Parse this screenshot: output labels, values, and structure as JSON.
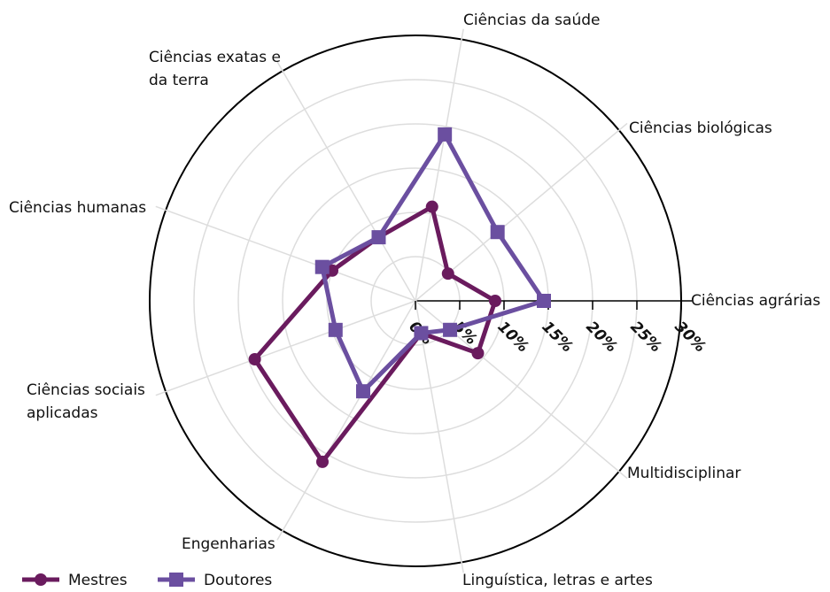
{
  "chart_data": {
    "type": "radar",
    "categories": [
      "Ciências agrárias",
      "Ciências biológicas",
      "Ciências da saúde",
      "Ciências exatas e da terra",
      "Ciências humanas",
      "Ciências sociais aplicadas",
      "Engenharias",
      "Linguística, letras e artes",
      "Multidisciplinar"
    ],
    "series": [
      {
        "name": "Mestres",
        "color": "#6a1b5e",
        "values": [
          9,
          4.8,
          10.8,
          8.3,
          10,
          19.3,
          21,
          3.7,
          9.2
        ]
      },
      {
        "name": "Doutores",
        "color": "#6b4fa0",
        "values": [
          14.5,
          12.1,
          19.1,
          8.3,
          11.2,
          9.6,
          11.8,
          3.7,
          5.1
        ]
      }
    ],
    "ylim": [
      0,
      30
    ],
    "yticks": [
      {
        "value": 0,
        "label": "0%"
      },
      {
        "value": 5,
        "label": "5%"
      },
      {
        "value": 10,
        "label": "10%"
      },
      {
        "value": 15,
        "label": "15%"
      },
      {
        "value": 20,
        "label": "20%"
      },
      {
        "value": 25,
        "label": "25%"
      },
      {
        "value": 30,
        "label": "30%"
      }
    ],
    "grid": true,
    "legend": "bottom-left"
  }
}
